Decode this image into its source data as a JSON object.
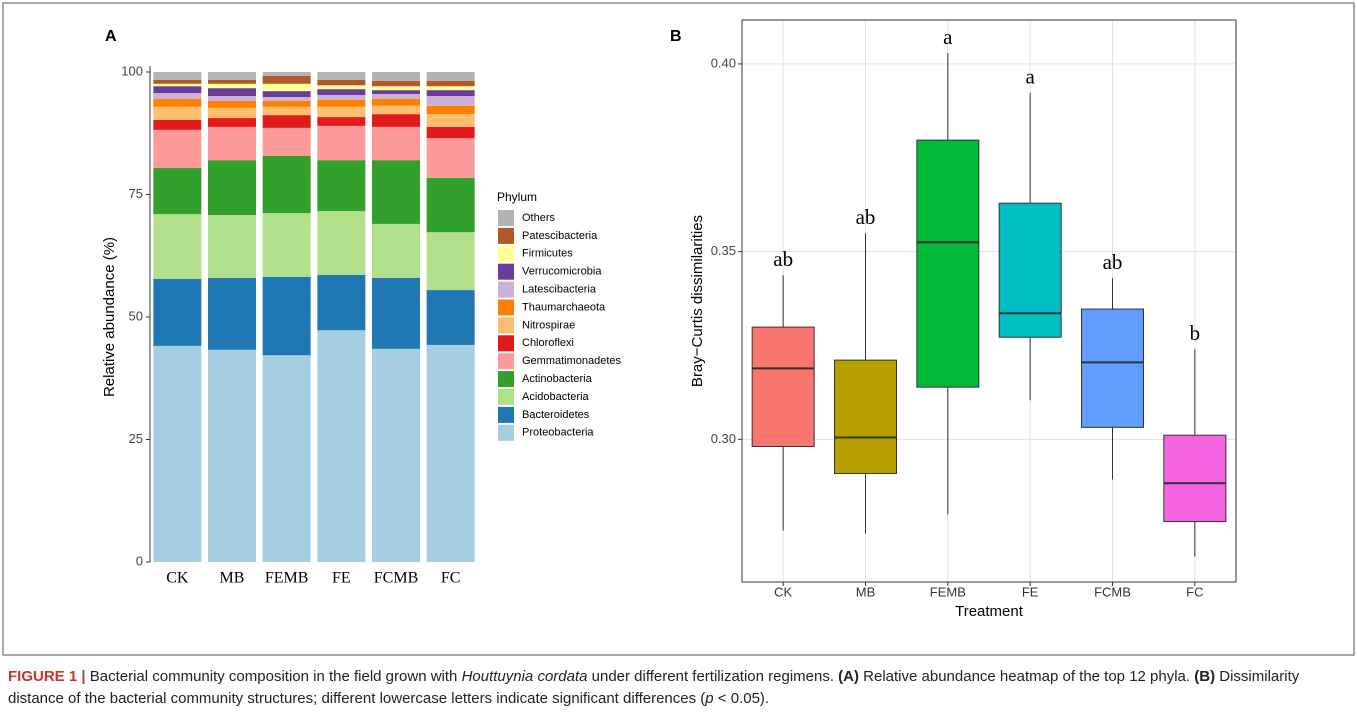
{
  "chart_data": [
    {
      "type": "stacked_bar",
      "panel": "A",
      "ylabel": "Relative abundance (%)",
      "legend_title": "Phylum",
      "categories": [
        "CK",
        "MB",
        "FEMB",
        "FE",
        "FCMB",
        "FC"
      ],
      "ylim": [
        0,
        100
      ],
      "yticks": [
        0,
        25,
        50,
        75,
        100
      ],
      "series": [
        {
          "name": "Proteobacteria",
          "color": "#a6cee3",
          "values": [
            44.1,
            43.3,
            42.2,
            47.3,
            43.5,
            44.3
          ]
        },
        {
          "name": "Bacteroidetes",
          "color": "#1f78b4",
          "values": [
            13.7,
            14.7,
            16.0,
            11.3,
            14.5,
            11.2
          ]
        },
        {
          "name": "Acidobacteria",
          "color": "#b2df8a",
          "values": [
            13.2,
            12.8,
            13.0,
            13.0,
            11.0,
            11.8
          ]
        },
        {
          "name": "Actinobacteria",
          "color": "#33a02c",
          "values": [
            9.4,
            11.2,
            11.7,
            10.4,
            13.0,
            11.1
          ]
        },
        {
          "name": "Gemmatimonadetes",
          "color": "#fb9a99",
          "values": [
            7.8,
            6.8,
            5.7,
            7.0,
            6.8,
            8.1
          ]
        },
        {
          "name": "Chloroflexi",
          "color": "#e31a1c",
          "values": [
            2.0,
            1.8,
            2.6,
            1.8,
            2.6,
            2.3
          ]
        },
        {
          "name": "Nitrospirae",
          "color": "#fdbf6f",
          "values": [
            2.7,
            2.1,
            1.7,
            2.1,
            1.7,
            2.6
          ]
        },
        {
          "name": "Thaumarchaeota",
          "color": "#ff7f00",
          "values": [
            1.6,
            1.4,
            1.2,
            1.4,
            1.4,
            1.7
          ]
        },
        {
          "name": "Latescibacteria",
          "color": "#cab2d6",
          "values": [
            1.2,
            1.0,
            0.8,
            1.0,
            1.0,
            2.0
          ]
        },
        {
          "name": "Verrucomicrobia",
          "color": "#6a3d9a",
          "values": [
            1.4,
            1.6,
            1.2,
            1.2,
            0.8,
            1.2
          ]
        },
        {
          "name": "Firmicutes",
          "color": "#ffff99",
          "values": [
            0.5,
            0.9,
            1.5,
            0.8,
            0.8,
            0.8
          ]
        },
        {
          "name": "Patescibacteria",
          "color": "#b15928",
          "values": [
            0.8,
            0.8,
            1.6,
            1.1,
            1.1,
            1.1
          ]
        },
        {
          "name": "Others",
          "color": "#b3b3b3",
          "values": [
            1.6,
            1.6,
            0.8,
            1.6,
            1.8,
            1.8
          ]
        }
      ]
    },
    {
      "type": "box",
      "panel": "B",
      "xlabel": "Treatment",
      "ylabel": "Bray−Curtis dissimilarities",
      "grid": true,
      "categories": [
        "CK",
        "MB",
        "FEMB",
        "FE",
        "FCMB",
        "FC"
      ],
      "colors": [
        "#f8766d",
        "#b79f00",
        "#00ba38",
        "#00bfc4",
        "#619cff",
        "#f564e3"
      ],
      "ylim": [
        0.262,
        0.4117
      ],
      "yticks": [
        {
          "value": 0.3,
          "label": "0.30"
        },
        0.35,
        {
          "value": 0.4,
          "label": "0.40"
        }
      ],
      "boxes": [
        {
          "min": 0.2757,
          "q1": 0.2981,
          "median": 0.3189,
          "q3": 0.3299,
          "max": 0.3437
        },
        {
          "min": 0.2749,
          "q1": 0.2909,
          "median": 0.3005,
          "q3": 0.3211,
          "max": 0.3549
        },
        {
          "min": 0.28,
          "q1": 0.3139,
          "median": 0.3525,
          "q3": 0.3797,
          "max": 0.4029
        },
        {
          "min": 0.3104,
          "q1": 0.3272,
          "median": 0.3336,
          "q3": 0.3629,
          "max": 0.3923
        },
        {
          "min": 0.2893,
          "q1": 0.3032,
          "median": 0.3205,
          "q3": 0.3347,
          "max": 0.3429
        },
        {
          "min": 0.2688,
          "q1": 0.2781,
          "median": 0.2883,
          "q3": 0.3011,
          "max": 0.324
        }
      ],
      "letters": [
        "ab",
        "ab",
        "a",
        "a",
        "ab",
        "b"
      ]
    }
  ],
  "caption": [
    {
      "text": "FIGURE 1 | ",
      "style": "bold"
    },
    {
      "text": "Bacterial community composition in the field grown with ",
      "style": "normal"
    },
    {
      "text": "Houttuynia cordata",
      "style": "italic"
    },
    {
      "text": " under different fertilization regimens. ",
      "style": "normal"
    },
    {
      "text": "(A)",
      "style": "bold"
    },
    {
      "text": " Relative abundance heatmap of the top 12 phyla. ",
      "style": "normal"
    },
    {
      "text": "(B)",
      "style": "bold"
    },
    {
      "text": " Dissimilarity distance of the bacterial community structures; different lowercase letters indicate significant differences (",
      "style": "normal"
    },
    {
      "text": "p",
      "style": "italic"
    },
    {
      "text": " < 0.05).",
      "style": "normal"
    }
  ]
}
